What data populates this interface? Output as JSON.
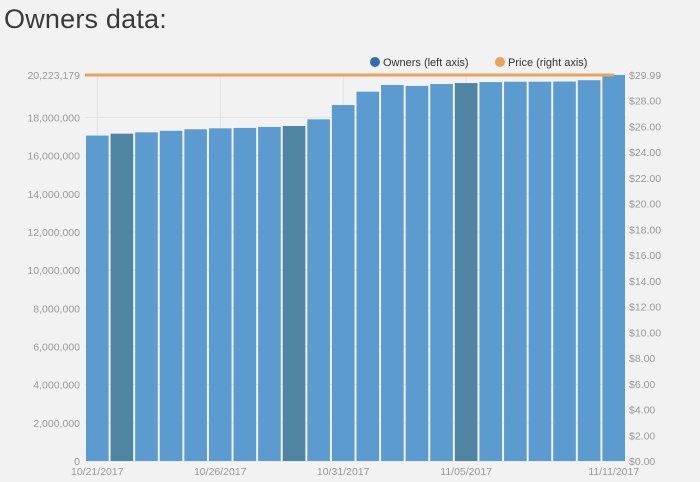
{
  "page": {
    "title": "Owners data:"
  },
  "chart_data": {
    "type": "bar",
    "title": "",
    "legend_placement": "top-right",
    "series": [
      {
        "name": "Owners (left axis)",
        "type": "bar",
        "axis": "left",
        "color": "#5b9bd0",
        "x": [
          "10/21/2017",
          "10/22/2017",
          "10/23/2017",
          "10/24/2017",
          "10/25/2017",
          "10/26/2017",
          "10/27/2017",
          "10/28/2017",
          "10/29/2017",
          "10/30/2017",
          "10/31/2017",
          "11/01/2017",
          "11/02/2017",
          "11/03/2017",
          "11/04/2017",
          "11/05/2017",
          "11/06/2017",
          "11/07/2017",
          "11/08/2017",
          "11/09/2017",
          "11/10/2017",
          "11/11/2017"
        ],
        "values": [
          17050000,
          17150000,
          17220000,
          17300000,
          17380000,
          17430000,
          17450000,
          17500000,
          17550000,
          17900000,
          18650000,
          19350000,
          19700000,
          19650000,
          19750000,
          19800000,
          19850000,
          19870000,
          19870000,
          19880000,
          19950000,
          20223179
        ]
      },
      {
        "name": "Price (right axis)",
        "type": "line",
        "axis": "right",
        "color": "#e8a45c",
        "x": [
          "10/21/2017",
          "11/11/2017"
        ],
        "values": [
          29.99,
          29.99
        ]
      }
    ],
    "highlighted_bars": [
      "10/22/2017",
      "10/29/2017",
      "11/05/2017"
    ],
    "highlight_color": "#4f84a3",
    "left_axis": {
      "range": [
        0,
        20223179
      ],
      "ticks": [
        {
          "value": 0,
          "label": "0"
        },
        {
          "value": 2000000,
          "label": "2,000,000"
        },
        {
          "value": 4000000,
          "label": "4,000,000"
        },
        {
          "value": 6000000,
          "label": "6,000,000"
        },
        {
          "value": 8000000,
          "label": "8,000,000"
        },
        {
          "value": 10000000,
          "label": "10,000,000"
        },
        {
          "value": 12000000,
          "label": "12,000,000"
        },
        {
          "value": 14000000,
          "label": "14,000,000"
        },
        {
          "value": 16000000,
          "label": "16,000,000"
        },
        {
          "value": 18000000,
          "label": "18,000,000"
        },
        {
          "value": 20223179,
          "label": "20,223,179"
        }
      ]
    },
    "right_axis": {
      "range": [
        0,
        29.99
      ],
      "ticks": [
        {
          "value": 0,
          "label": "$0.00"
        },
        {
          "value": 2,
          "label": "$2.00"
        },
        {
          "value": 4,
          "label": "$4.00"
        },
        {
          "value": 6,
          "label": "$6.00"
        },
        {
          "value": 8,
          "label": "$8.00"
        },
        {
          "value": 10,
          "label": "$10.00"
        },
        {
          "value": 12,
          "label": "$12.00"
        },
        {
          "value": 14,
          "label": "$14.00"
        },
        {
          "value": 16,
          "label": "$16.00"
        },
        {
          "value": 18,
          "label": "$18.00"
        },
        {
          "value": 20,
          "label": "$20.00"
        },
        {
          "value": 22,
          "label": "$22.00"
        },
        {
          "value": 24,
          "label": "$24.00"
        },
        {
          "value": 26,
          "label": "$26.00"
        },
        {
          "value": 28,
          "label": "$28.00"
        },
        {
          "value": 29.99,
          "label": "$29.99"
        }
      ]
    },
    "x_tick_labels": [
      {
        "at": "10/21/2017",
        "label": "10/21/2017"
      },
      {
        "at": "10/26/2017",
        "label": "10/26/2017"
      },
      {
        "at": "10/31/2017",
        "label": "10/31/2017"
      },
      {
        "at": "11/05/2017",
        "label": "11/05/2017"
      },
      {
        "at": "11/11/2017",
        "label": "11/11/2017"
      }
    ],
    "grid": true
  }
}
